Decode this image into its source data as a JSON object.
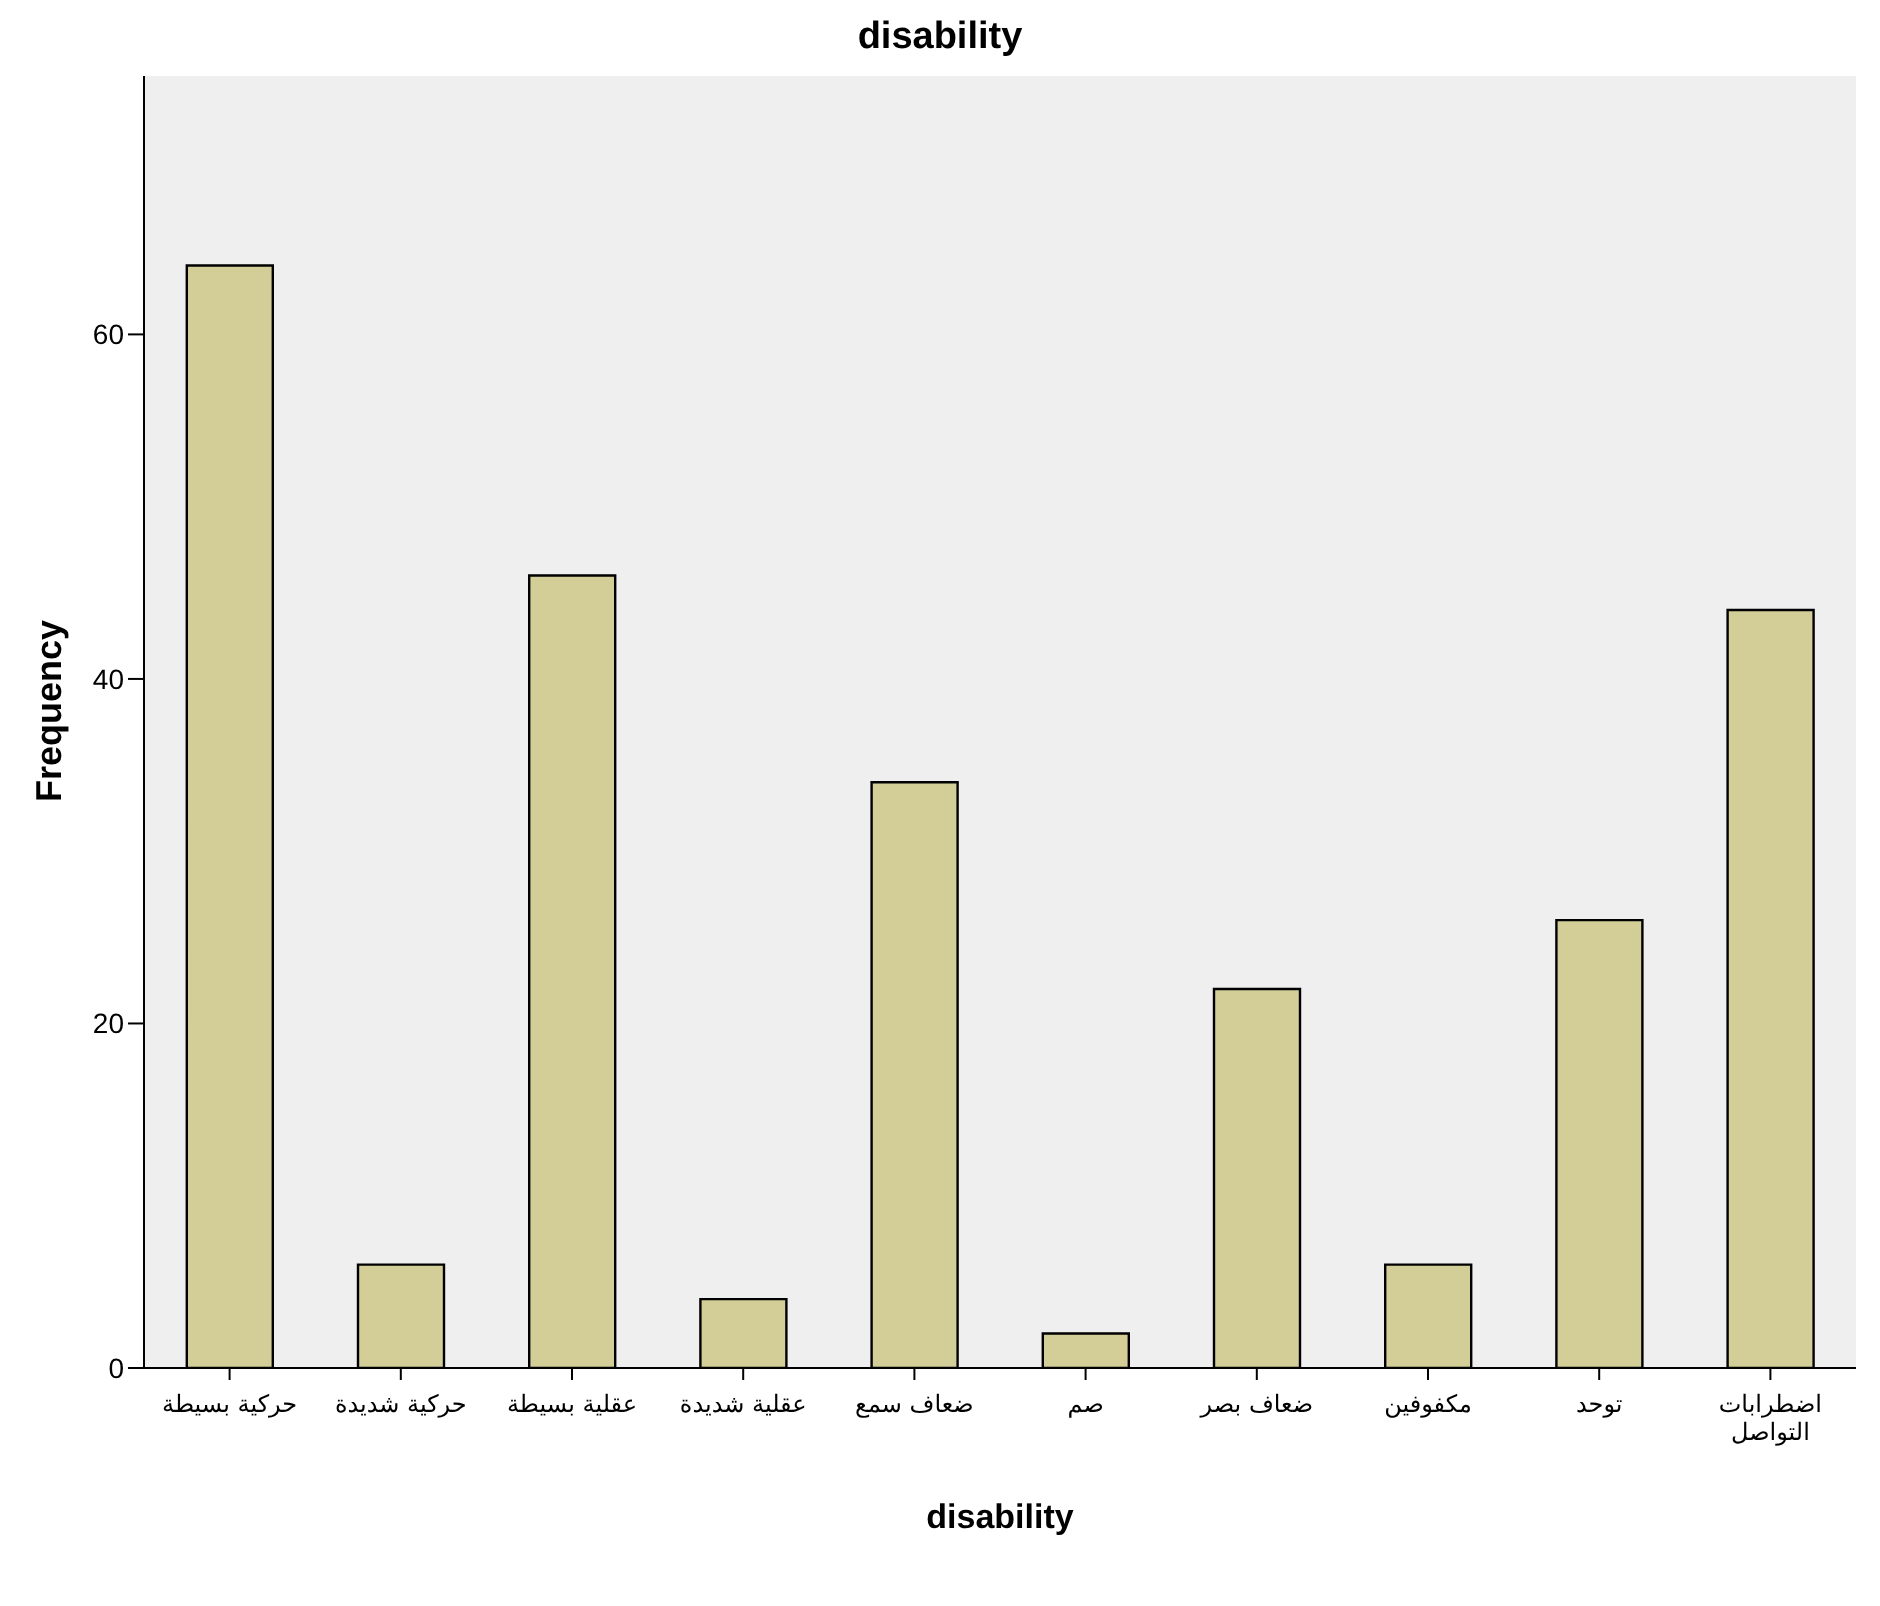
{
  "chart_data": {
    "type": "bar",
    "title": "disability",
    "xlabel": "disability",
    "ylabel": "Frequency",
    "categories": [
      "حركية بسيطة",
      "حركية شديدة",
      "عقلية بسيطة",
      "عقلية شديدة",
      "ضعاف سمع",
      "صم",
      "ضعاف بصر",
      "مكفوفين",
      "توحد",
      "اضطرابات التواصل"
    ],
    "values": [
      64,
      6,
      46,
      4,
      34,
      2,
      22,
      6,
      26,
      44
    ],
    "color": "#d3ce97",
    "ylim": [
      0,
      75
    ],
    "yticks": [
      0,
      20,
      40,
      60
    ],
    "grid": false,
    "legend": false
  }
}
